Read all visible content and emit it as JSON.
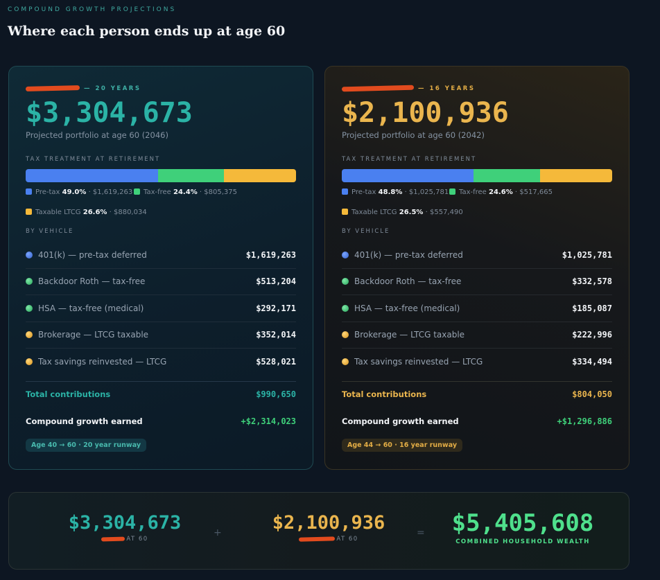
{
  "header": {
    "eyebrow": "COMPOUND GROWTH PROJECTIONS",
    "title": "Where each person ends up at age 60"
  },
  "labels": {
    "tax_treatment": "TAX TREATMENT AT RETIREMENT",
    "by_vehicle": "BY VEHICLE",
    "total_contributions": "Total contributions",
    "compound_growth": "Compound growth earned"
  },
  "colors": {
    "teal": "#2bb3a6",
    "amber": "#eab54e",
    "pre_tax": "#4a80f0",
    "tax_free": "#3fd07a",
    "taxable": "#f5b93a",
    "growth": "#3fd07a"
  },
  "person1": {
    "tag": "— 20 YEARS",
    "total": "$3,304,673",
    "subline": "Projected portfolio at age 60 (2046)",
    "tax": {
      "pre_label": "Pre-tax",
      "pre_pct": "49.0%",
      "pre_amt": "· $1,619,263",
      "pre_frac": 0.49,
      "free_label": "Tax-free",
      "free_pct": "24.4%",
      "free_amt": "· $805,375",
      "free_frac": 0.244,
      "ltcg_label": "Taxable LTCG",
      "ltcg_pct": "26.6%",
      "ltcg_amt": "· $880,034",
      "ltcg_frac": 0.266
    },
    "vehicles": [
      {
        "name": "401(k) — pre-tax deferred",
        "value": "$1,619,263"
      },
      {
        "name": "Backdoor Roth — tax-free",
        "value": "$513,204"
      },
      {
        "name": "HSA — tax-free (medical)",
        "value": "$292,171"
      },
      {
        "name": "Brokerage — LTCG taxable",
        "value": "$352,014"
      },
      {
        "name": "Tax savings reinvested — LTCG",
        "value": "$528,021"
      }
    ],
    "contributions": "$990,650",
    "growth": "+$2,314,023",
    "runway": "Age 40 → 60 · 20 year runway"
  },
  "person2": {
    "tag": "— 16 YEARS",
    "total": "$2,100,936",
    "subline": "Projected portfolio at age 60 (2042)",
    "tax": {
      "pre_label": "Pre-tax",
      "pre_pct": "48.8%",
      "pre_amt": "· $1,025,781",
      "pre_frac": 0.488,
      "free_label": "Tax-free",
      "free_pct": "24.6%",
      "free_amt": "· $517,665",
      "free_frac": 0.246,
      "ltcg_label": "Taxable LTCG",
      "ltcg_pct": "26.5%",
      "ltcg_amt": "· $557,490",
      "ltcg_frac": 0.265
    },
    "vehicles": [
      {
        "name": "401(k) — pre-tax deferred",
        "value": "$1,025,781"
      },
      {
        "name": "Backdoor Roth — tax-free",
        "value": "$332,578"
      },
      {
        "name": "HSA — tax-free (medical)",
        "value": "$185,087"
      },
      {
        "name": "Brokerage — LTCG taxable",
        "value": "$222,996"
      },
      {
        "name": "Tax savings reinvested — LTCG",
        "value": "$334,494"
      }
    ],
    "contributions": "$804,050",
    "growth": "+$1,296,886",
    "runway": "Age 44 → 60 · 16 year runway"
  },
  "summary": {
    "p1_amount": "$3,304,673",
    "p1_caption": "AT 60",
    "plus": "+",
    "p2_amount": "$2,100,936",
    "p2_caption": "AT 60",
    "equals": "=",
    "combined_amount": "$5,405,608",
    "combined_caption": "COMBINED HOUSEHOLD WEALTH"
  }
}
